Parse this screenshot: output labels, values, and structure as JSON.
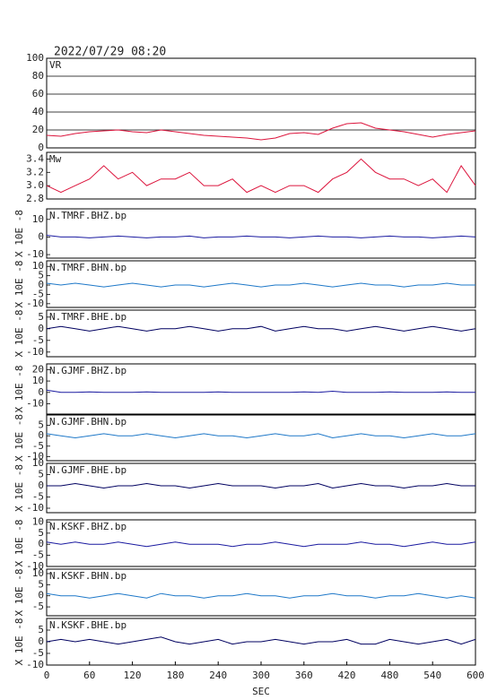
{
  "heading": "2022/07/29 08:20",
  "chart_data": [
    {
      "type": "line",
      "title": "VR",
      "grid": true,
      "color": "#dc143c",
      "xlim": [
        0,
        600
      ],
      "ylim": [
        0,
        100
      ],
      "yticks": [
        0,
        20,
        40,
        60,
        80,
        100
      ],
      "x": [
        0,
        20,
        40,
        60,
        80,
        100,
        120,
        140,
        160,
        180,
        200,
        220,
        240,
        260,
        280,
        300,
        320,
        340,
        360,
        380,
        400,
        420,
        440,
        460,
        480,
        500,
        520,
        540,
        560,
        580,
        600
      ],
      "values": [
        14,
        13,
        16,
        18,
        19,
        20,
        18,
        17,
        20,
        18,
        16,
        14,
        13,
        12,
        11,
        9,
        11,
        16,
        17,
        15,
        22,
        27,
        28,
        22,
        20,
        18,
        15,
        12,
        15,
        17,
        19
      ]
    },
    {
      "type": "line",
      "title": "Mw",
      "color": "#dc143c",
      "xlim": [
        0,
        600
      ],
      "ylim": [
        2.8,
        3.5
      ],
      "yticks": [
        2.8,
        {
          "value": 3,
          "label": "3.0"
        },
        3.2,
        3.4
      ],
      "x": [
        0,
        20,
        40,
        60,
        80,
        100,
        120,
        140,
        160,
        180,
        200,
        220,
        240,
        260,
        280,
        300,
        320,
        340,
        360,
        380,
        400,
        420,
        440,
        460,
        480,
        500,
        520,
        540,
        560,
        580,
        600
      ],
      "values": [
        3.0,
        2.9,
        3.0,
        3.1,
        3.3,
        3.1,
        3.2,
        3.0,
        3.1,
        3.1,
        3.2,
        3.0,
        3.0,
        3.1,
        2.9,
        3.0,
        2.9,
        3.0,
        3.0,
        2.9,
        3.1,
        3.2,
        3.4,
        3.2,
        3.1,
        3.1,
        3.0,
        3.1,
        2.9,
        3.3,
        3.0
      ]
    },
    {
      "type": "line",
      "title": "N.TMRF.BHZ.bp",
      "ylabel": "X 10E -8",
      "color": "#1a1aa0",
      "xlim": [
        0,
        600
      ],
      "ylim": [
        -12,
        16
      ],
      "yticks": [
        -10,
        0,
        10
      ],
      "x": [
        0,
        20,
        40,
        60,
        80,
        100,
        120,
        140,
        160,
        180,
        200,
        220,
        240,
        260,
        280,
        300,
        320,
        340,
        360,
        380,
        400,
        420,
        440,
        460,
        480,
        500,
        520,
        540,
        560,
        580,
        600
      ],
      "values": [
        1,
        0,
        0,
        -0.5,
        0,
        0.5,
        0,
        -0.5,
        0,
        0,
        0.5,
        -0.5,
        0,
        0,
        0.5,
        0,
        0,
        -0.5,
        0,
        0.5,
        0,
        0,
        -0.5,
        0,
        0.5,
        0,
        0,
        -0.5,
        0,
        0.5,
        0
      ]
    },
    {
      "type": "line",
      "title": "N.TMRF.BHN.bp",
      "ylabel": "X 10E -8",
      "color": "#1e78c8",
      "xlim": [
        0,
        600
      ],
      "ylim": [
        -12,
        13
      ],
      "yticks": [
        -10,
        -5,
        0,
        5,
        10
      ],
      "x": [
        0,
        20,
        40,
        60,
        80,
        100,
        120,
        140,
        160,
        180,
        200,
        220,
        240,
        260,
        280,
        300,
        320,
        340,
        360,
        380,
        400,
        420,
        440,
        460,
        480,
        500,
        520,
        540,
        560,
        580,
        600
      ],
      "values": [
        1,
        0,
        1,
        0,
        -1,
        0,
        1,
        0,
        -1,
        0,
        0,
        -1,
        0,
        1,
        0,
        -1,
        0,
        0,
        1,
        0,
        -1,
        0,
        1,
        0,
        0,
        -1,
        0,
        0,
        1,
        0,
        0
      ]
    },
    {
      "type": "line",
      "title": "N.TMRF.BHE.bp",
      "ylabel": "X 10E -8",
      "color": "#000060",
      "xlim": [
        0,
        600
      ],
      "ylim": [
        -12,
        8
      ],
      "yticks": [
        -10,
        -5,
        0,
        5
      ],
      "x": [
        0,
        20,
        40,
        60,
        80,
        100,
        120,
        140,
        160,
        180,
        200,
        220,
        240,
        260,
        280,
        300,
        320,
        340,
        360,
        380,
        400,
        420,
        440,
        460,
        480,
        500,
        520,
        540,
        560,
        580,
        600
      ],
      "values": [
        0,
        1,
        0,
        -1,
        0,
        1,
        0,
        -1,
        0,
        0,
        1,
        0,
        -1,
        0,
        0,
        1,
        -1,
        0,
        1,
        0,
        0,
        -1,
        0,
        1,
        0,
        -1,
        0,
        1,
        0,
        -1,
        0
      ]
    },
    {
      "type": "line",
      "title": "N.GJMF.BHZ.bp",
      "ylabel": "X 10E -8",
      "color": "#1a1aa0",
      "xlim": [
        0,
        600
      ],
      "ylim": [
        -19,
        25
      ],
      "yticks": [
        -10,
        0,
        10,
        20
      ],
      "x": [
        0,
        20,
        40,
        60,
        80,
        100,
        120,
        140,
        160,
        180,
        200,
        220,
        240,
        260,
        280,
        300,
        320,
        340,
        360,
        380,
        400,
        420,
        440,
        460,
        480,
        500,
        520,
        540,
        560,
        580,
        600
      ],
      "values": [
        2,
        0,
        0,
        0.5,
        0,
        0,
        0,
        0.5,
        0,
        0,
        0,
        0,
        0.5,
        0,
        0,
        0,
        0,
        0,
        0.5,
        0,
        1,
        0,
        0,
        0,
        0.5,
        0,
        0,
        0,
        0.5,
        0,
        0
      ]
    },
    {
      "type": "line",
      "title": "N.GJMF.BHN.bp",
      "ylabel": "X 10E -8",
      "color": "#1e78c8",
      "xlim": [
        0,
        600
      ],
      "ylim": [
        -12,
        10
      ],
      "yticks": [
        -10,
        -5,
        0,
        5
      ],
      "x": [
        0,
        20,
        40,
        60,
        80,
        100,
        120,
        140,
        160,
        180,
        200,
        220,
        240,
        260,
        280,
        300,
        320,
        340,
        360,
        380,
        400,
        420,
        440,
        460,
        480,
        500,
        520,
        540,
        560,
        580,
        600
      ],
      "values": [
        1,
        0,
        -1,
        0,
        1,
        0,
        0,
        1,
        0,
        -1,
        0,
        1,
        0,
        0,
        -1,
        0,
        1,
        0,
        0,
        1,
        -1,
        0,
        1,
        0,
        0,
        -1,
        0,
        1,
        0,
        0,
        1
      ]
    },
    {
      "type": "line",
      "title": "N.GJMF.BHE.bp",
      "ylabel": "X 10E -8",
      "color": "#000060",
      "xlim": [
        0,
        600
      ],
      "ylim": [
        -12,
        10
      ],
      "yticks": [
        -10,
        -5,
        0,
        5,
        10
      ],
      "x": [
        0,
        20,
        40,
        60,
        80,
        100,
        120,
        140,
        160,
        180,
        200,
        220,
        240,
        260,
        280,
        300,
        320,
        340,
        360,
        380,
        400,
        420,
        440,
        460,
        480,
        500,
        520,
        540,
        560,
        580,
        600
      ],
      "values": [
        0,
        0,
        1,
        0,
        -1,
        0,
        0,
        1,
        0,
        0,
        -1,
        0,
        1,
        0,
        0,
        0,
        -1,
        0,
        0,
        1,
        -1,
        0,
        1,
        0,
        0,
        -1,
        0,
        0,
        1,
        0,
        0
      ]
    },
    {
      "type": "line",
      "title": "N.KSKF.BHZ.bp",
      "ylabel": "X 10E -8",
      "color": "#1a1aa0",
      "xlim": [
        0,
        600
      ],
      "ylim": [
        -10,
        11
      ],
      "yticks": [
        -10,
        -5,
        0,
        5,
        10
      ],
      "x": [
        0,
        20,
        40,
        60,
        80,
        100,
        120,
        140,
        160,
        180,
        200,
        220,
        240,
        260,
        280,
        300,
        320,
        340,
        360,
        380,
        400,
        420,
        440,
        460,
        480,
        500,
        520,
        540,
        560,
        580,
        600
      ],
      "values": [
        1,
        0,
        1,
        0,
        0,
        1,
        0,
        -1,
        0,
        1,
        0,
        0,
        0,
        -1,
        0,
        0,
        1,
        0,
        -1,
        0,
        0,
        0,
        1,
        0,
        0,
        -1,
        0,
        1,
        0,
        0,
        1
      ]
    },
    {
      "type": "line",
      "title": "N.KSKF.BHN.bp",
      "ylabel": "X 10E -8",
      "color": "#1e78c8",
      "xlim": [
        0,
        600
      ],
      "ylim": [
        -9,
        12
      ],
      "yticks": [
        -5,
        0,
        5,
        10
      ],
      "x": [
        0,
        20,
        40,
        60,
        80,
        100,
        120,
        140,
        160,
        180,
        200,
        220,
        240,
        260,
        280,
        300,
        320,
        340,
        360,
        380,
        400,
        420,
        440,
        460,
        480,
        500,
        520,
        540,
        560,
        580,
        600
      ],
      "values": [
        1,
        0,
        0,
        -1,
        0,
        1,
        0,
        -1,
        1,
        0,
        0,
        -1,
        0,
        0,
        1,
        0,
        0,
        -1,
        0,
        0,
        1,
        0,
        0,
        -1,
        0,
        0,
        1,
        0,
        -1,
        0,
        -1
      ]
    },
    {
      "type": "line",
      "title": "N.KSKF.BHE.bp",
      "ylabel": "X 10E -8",
      "color": "#000060",
      "xlim": [
        0,
        600
      ],
      "ylim": [
        -10,
        10
      ],
      "yticks": [
        -10,
        -5,
        0,
        5
      ],
      "xlabel": "SEC",
      "xticks": [
        0,
        60,
        120,
        180,
        240,
        300,
        360,
        420,
        480,
        540,
        600
      ],
      "x": [
        0,
        20,
        40,
        60,
        80,
        100,
        120,
        140,
        160,
        180,
        200,
        220,
        240,
        260,
        280,
        300,
        320,
        340,
        360,
        380,
        400,
        420,
        440,
        460,
        480,
        500,
        520,
        540,
        560,
        580,
        600
      ],
      "values": [
        0,
        1,
        0,
        1,
        0,
        -1,
        0,
        1,
        2,
        0,
        -1,
        0,
        1,
        -1,
        0,
        0,
        1,
        0,
        -1,
        0,
        0,
        1,
        -1,
        -1,
        1,
        0,
        -1,
        0,
        1,
        -1,
        1
      ]
    }
  ]
}
